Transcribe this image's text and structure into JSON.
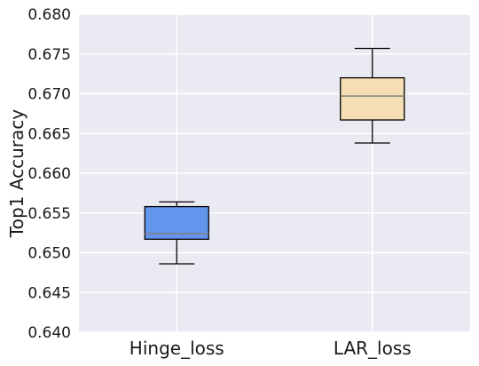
{
  "chart_data": {
    "type": "box",
    "title": "",
    "xlabel": "",
    "ylabel": "Top1 Accuracy",
    "ylim": [
      0.64,
      0.68
    ],
    "yticks": [
      "0.640",
      "0.645",
      "0.650",
      "0.655",
      "0.660",
      "0.665",
      "0.670",
      "0.675",
      "0.680"
    ],
    "grid": true,
    "categories": [
      "Hinge_loss",
      "LAR_loss"
    ],
    "boxes": [
      {
        "name": "Hinge_loss",
        "min": 0.6486,
        "q1": 0.6517,
        "median": 0.6524,
        "q3": 0.6558,
        "max": 0.6564,
        "color": "#6495ED"
      },
      {
        "name": "LAR_loss",
        "min": 0.6638,
        "q1": 0.6667,
        "median": 0.6697,
        "q3": 0.672,
        "max": 0.6757,
        "color": "#F5DEB3"
      }
    ],
    "colors": {
      "plot_background": "#EAEAF2",
      "grid": "#FFFFFF",
      "median_line": "#808080",
      "box_edge": "#000000"
    }
  }
}
